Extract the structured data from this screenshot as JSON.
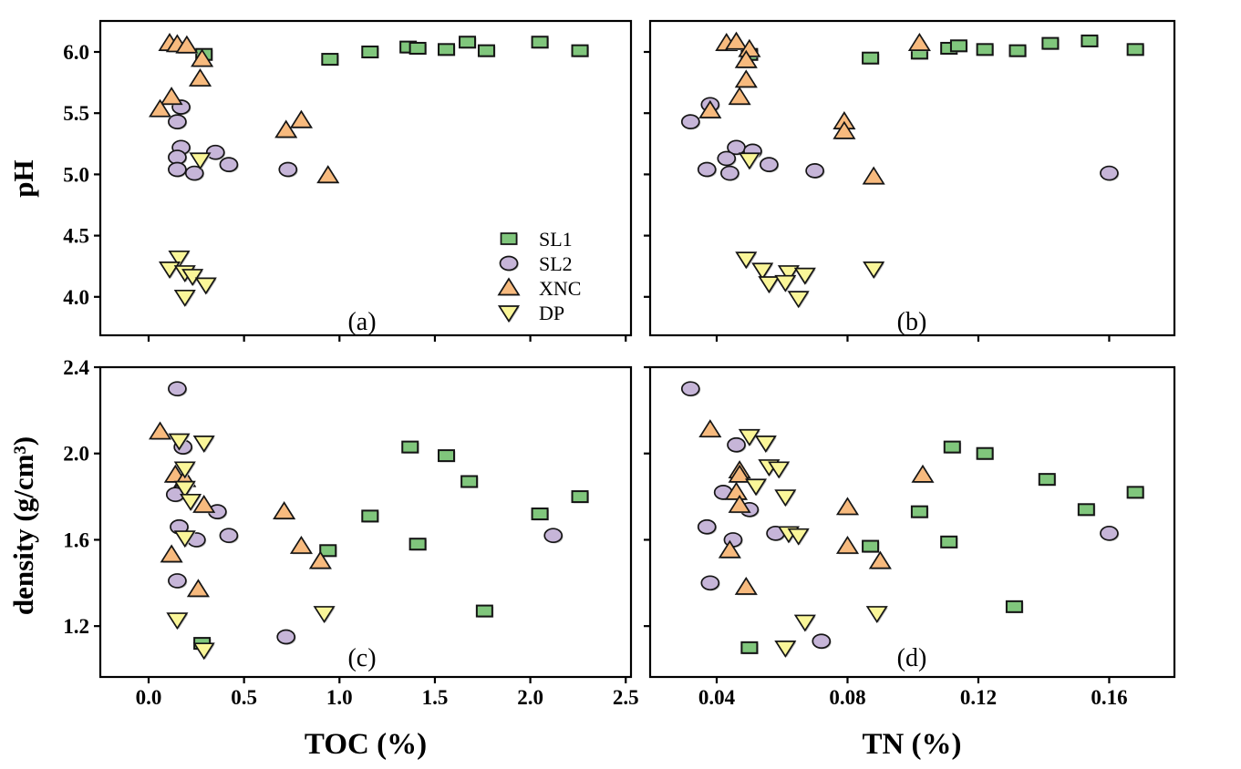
{
  "figure": {
    "type": "scatter-grid-2x2",
    "background": "#ffffff",
    "axis_titles": {
      "top_y": "pH",
      "bottom_y": "density (g/cm³)",
      "left_x": "TOC (%)",
      "right_x": "TN (%)"
    },
    "legend": {
      "items": [
        {
          "label": "SL1",
          "marker": "square",
          "color": "#80C67C"
        },
        {
          "label": "SL2",
          "marker": "circle",
          "color": "#C6B5D8"
        },
        {
          "label": "XNC",
          "marker": "triangle-up",
          "color": "#F7BA7E"
        },
        {
          "label": "DP",
          "marker": "triangle-down",
          "color": "#FAF699"
        }
      ]
    },
    "colors": {
      "SL1": "#80C67C",
      "SL2": "#C6B5D8",
      "XNC": "#F7BA7E",
      "DP": "#FAF699",
      "marker_edge": "#151515",
      "frame": "#000000",
      "shadow": "#b8b8b8"
    }
  },
  "chart_data": [
    {
      "id": "a",
      "type": "scatter",
      "panel_label": "(a)",
      "x_var": "TOC (%)",
      "y_var": "pH",
      "x_range": [
        -0.25,
        2.53
      ],
      "y_range": [
        3.69,
        6.25
      ],
      "x_ticks": [
        0.0,
        0.5,
        1.0,
        1.5,
        2.0,
        2.5
      ],
      "x_tick_labels": null,
      "y_ticks": [
        6.0,
        5.5,
        5.0,
        4.5,
        4.0
      ],
      "y_tick_labels": [
        "6.0",
        "5.5",
        "5.0",
        "4.5",
        "4.0"
      ],
      "series": [
        {
          "name": "SL1",
          "points": [
            [
              0.29,
              5.98
            ],
            [
              0.95,
              5.94
            ],
            [
              1.16,
              6.0
            ],
            [
              1.36,
              6.04
            ],
            [
              1.41,
              6.03
            ],
            [
              1.56,
              6.02
            ],
            [
              1.67,
              6.08
            ],
            [
              1.77,
              6.01
            ],
            [
              2.05,
              6.08
            ],
            [
              2.26,
              6.01
            ]
          ]
        },
        {
          "name": "SL2",
          "points": [
            [
              0.17,
              5.55
            ],
            [
              0.15,
              5.43
            ],
            [
              0.17,
              5.22
            ],
            [
              0.15,
              5.14
            ],
            [
              0.15,
              5.04
            ],
            [
              0.24,
              5.01
            ],
            [
              0.35,
              5.18
            ],
            [
              0.42,
              5.08
            ],
            [
              0.73,
              5.04
            ]
          ]
        },
        {
          "name": "XNC",
          "points": [
            [
              0.11,
              6.07
            ],
            [
              0.15,
              6.06
            ],
            [
              0.2,
              6.05
            ],
            [
              0.28,
              5.94
            ],
            [
              0.27,
              5.78
            ],
            [
              0.12,
              5.63
            ],
            [
              0.06,
              5.53
            ],
            [
              0.72,
              5.36
            ],
            [
              0.8,
              5.44
            ],
            [
              0.94,
              4.99
            ]
          ]
        },
        {
          "name": "DP",
          "points": [
            [
              0.27,
              5.12
            ],
            [
              0.16,
              4.32
            ],
            [
              0.11,
              4.23
            ],
            [
              0.19,
              4.2
            ],
            [
              0.23,
              4.17
            ],
            [
              0.3,
              4.1
            ],
            [
              0.19,
              4.0
            ]
          ]
        }
      ]
    },
    {
      "id": "b",
      "type": "scatter",
      "panel_label": "(b)",
      "x_var": "TN (%)",
      "y_var": "pH",
      "x_range": [
        0.02,
        0.18
      ],
      "y_range": [
        3.69,
        6.25
      ],
      "x_ticks": [
        0.04,
        0.08,
        0.12,
        0.16
      ],
      "x_tick_labels": null,
      "y_ticks": [
        6.0,
        5.5,
        5.0,
        4.5,
        4.0
      ],
      "y_tick_labels": null,
      "series": [
        {
          "name": "SL1",
          "points": [
            [
              0.05,
              5.98
            ],
            [
              0.087,
              5.95
            ],
            [
              0.102,
              5.99
            ],
            [
              0.111,
              6.03
            ],
            [
              0.114,
              6.05
            ],
            [
              0.122,
              6.02
            ],
            [
              0.132,
              6.01
            ],
            [
              0.142,
              6.07
            ],
            [
              0.154,
              6.09
            ],
            [
              0.168,
              6.02
            ]
          ]
        },
        {
          "name": "SL2",
          "points": [
            [
              0.038,
              5.57
            ],
            [
              0.032,
              5.43
            ],
            [
              0.046,
              5.22
            ],
            [
              0.051,
              5.19
            ],
            [
              0.043,
              5.13
            ],
            [
              0.037,
              5.04
            ],
            [
              0.044,
              5.01
            ],
            [
              0.056,
              5.08
            ],
            [
              0.07,
              5.03
            ],
            [
              0.16,
              5.01
            ]
          ]
        },
        {
          "name": "XNC",
          "points": [
            [
              0.043,
              6.07
            ],
            [
              0.046,
              6.08
            ],
            [
              0.05,
              6.02
            ],
            [
              0.102,
              6.07
            ],
            [
              0.049,
              5.93
            ],
            [
              0.049,
              5.77
            ],
            [
              0.047,
              5.63
            ],
            [
              0.038,
              5.52
            ],
            [
              0.079,
              5.43
            ],
            [
              0.079,
              5.35
            ],
            [
              0.088,
              4.98
            ]
          ]
        },
        {
          "name": "DP",
          "points": [
            [
              0.05,
              5.12
            ],
            [
              0.049,
              4.31
            ],
            [
              0.054,
              4.22
            ],
            [
              0.062,
              4.2
            ],
            [
              0.067,
              4.18
            ],
            [
              0.056,
              4.11
            ],
            [
              0.061,
              4.12
            ],
            [
              0.065,
              3.99
            ],
            [
              0.088,
              4.23
            ]
          ]
        }
      ]
    },
    {
      "id": "c",
      "type": "scatter",
      "panel_label": "(c)",
      "x_var": "TOC (%)",
      "y_var": "density (g/cm³)",
      "x_range": [
        -0.25,
        2.53
      ],
      "y_range": [
        0.96,
        2.4
      ],
      "x_ticks": [
        0.0,
        0.5,
        1.0,
        1.5,
        2.0,
        2.5
      ],
      "x_tick_labels": [
        "0.0",
        "0.5",
        "1.0",
        "1.5",
        "2.0",
        "2.5"
      ],
      "y_ticks": [
        2.4,
        2.0,
        1.6,
        1.2
      ],
      "y_tick_labels": [
        "2.4",
        "2.0",
        "1.6",
        "1.2"
      ],
      "series": [
        {
          "name": "SL1",
          "points": [
            [
              0.28,
              1.12
            ],
            [
              0.94,
              1.55
            ],
            [
              1.16,
              1.71
            ],
            [
              1.37,
              2.03
            ],
            [
              1.41,
              1.58
            ],
            [
              1.56,
              1.99
            ],
            [
              1.68,
              1.87
            ],
            [
              1.76,
              1.27
            ],
            [
              2.05,
              1.72
            ],
            [
              2.26,
              1.8
            ]
          ]
        },
        {
          "name": "SL2",
          "points": [
            [
              0.15,
              2.3
            ],
            [
              0.18,
              2.03
            ],
            [
              0.14,
              1.81
            ],
            [
              0.36,
              1.73
            ],
            [
              0.16,
              1.66
            ],
            [
              0.25,
              1.6
            ],
            [
              0.42,
              1.62
            ],
            [
              0.15,
              1.41
            ],
            [
              0.72,
              1.15
            ],
            [
              2.12,
              1.62
            ]
          ]
        },
        {
          "name": "XNC",
          "points": [
            [
              0.06,
              2.1
            ],
            [
              0.14,
              1.9
            ],
            [
              0.19,
              1.88
            ],
            [
              0.29,
              1.76
            ],
            [
              0.12,
              1.53
            ],
            [
              0.26,
              1.37
            ],
            [
              0.71,
              1.73
            ],
            [
              0.8,
              1.57
            ],
            [
              0.9,
              1.5
            ]
          ]
        },
        {
          "name": "DP",
          "points": [
            [
              0.16,
              2.06
            ],
            [
              0.29,
              2.05
            ],
            [
              0.19,
              1.93
            ],
            [
              0.19,
              1.84
            ],
            [
              0.22,
              1.78
            ],
            [
              0.19,
              1.61
            ],
            [
              0.15,
              1.23
            ],
            [
              0.92,
              1.26
            ],
            [
              0.29,
              1.09
            ]
          ]
        }
      ]
    },
    {
      "id": "d",
      "type": "scatter",
      "panel_label": "(d)",
      "x_var": "TN (%)",
      "y_var": "density (g/cm³)",
      "x_range": [
        0.02,
        0.18
      ],
      "y_range": [
        0.96,
        2.4
      ],
      "x_ticks": [
        0.04,
        0.08,
        0.12,
        0.16
      ],
      "x_tick_labels": [
        "0.04",
        "0.08",
        "0.12",
        "0.16"
      ],
      "y_ticks": [
        2.4,
        2.0,
        1.6,
        1.2
      ],
      "y_tick_labels": null,
      "series": [
        {
          "name": "SL1",
          "points": [
            [
              0.05,
              1.1
            ],
            [
              0.087,
              1.57
            ],
            [
              0.102,
              1.73
            ],
            [
              0.111,
              1.59
            ],
            [
              0.112,
              2.03
            ],
            [
              0.122,
              2.0
            ],
            [
              0.131,
              1.29
            ],
            [
              0.141,
              1.88
            ],
            [
              0.153,
              1.74
            ],
            [
              0.168,
              1.82
            ]
          ]
        },
        {
          "name": "SL2",
          "points": [
            [
              0.032,
              2.3
            ],
            [
              0.046,
              2.04
            ],
            [
              0.042,
              1.82
            ],
            [
              0.05,
              1.74
            ],
            [
              0.037,
              1.66
            ],
            [
              0.045,
              1.6
            ],
            [
              0.058,
              1.63
            ],
            [
              0.038,
              1.4
            ],
            [
              0.072,
              1.13
            ],
            [
              0.16,
              1.63
            ]
          ]
        },
        {
          "name": "XNC",
          "points": [
            [
              0.038,
              2.11
            ],
            [
              0.047,
              1.92
            ],
            [
              0.047,
              1.9
            ],
            [
              0.046,
              1.82
            ],
            [
              0.047,
              1.76
            ],
            [
              0.044,
              1.55
            ],
            [
              0.049,
              1.38
            ],
            [
              0.08,
              1.75
            ],
            [
              0.08,
              1.57
            ],
            [
              0.09,
              1.5
            ],
            [
              0.103,
              1.9
            ]
          ]
        },
        {
          "name": "DP",
          "points": [
            [
              0.05,
              2.08
            ],
            [
              0.055,
              2.05
            ],
            [
              0.056,
              1.94
            ],
            [
              0.059,
              1.93
            ],
            [
              0.052,
              1.85
            ],
            [
              0.061,
              1.8
            ],
            [
              0.062,
              1.63
            ],
            [
              0.065,
              1.62
            ],
            [
              0.067,
              1.22
            ],
            [
              0.061,
              1.1
            ],
            [
              0.089,
              1.26
            ]
          ]
        }
      ]
    }
  ]
}
